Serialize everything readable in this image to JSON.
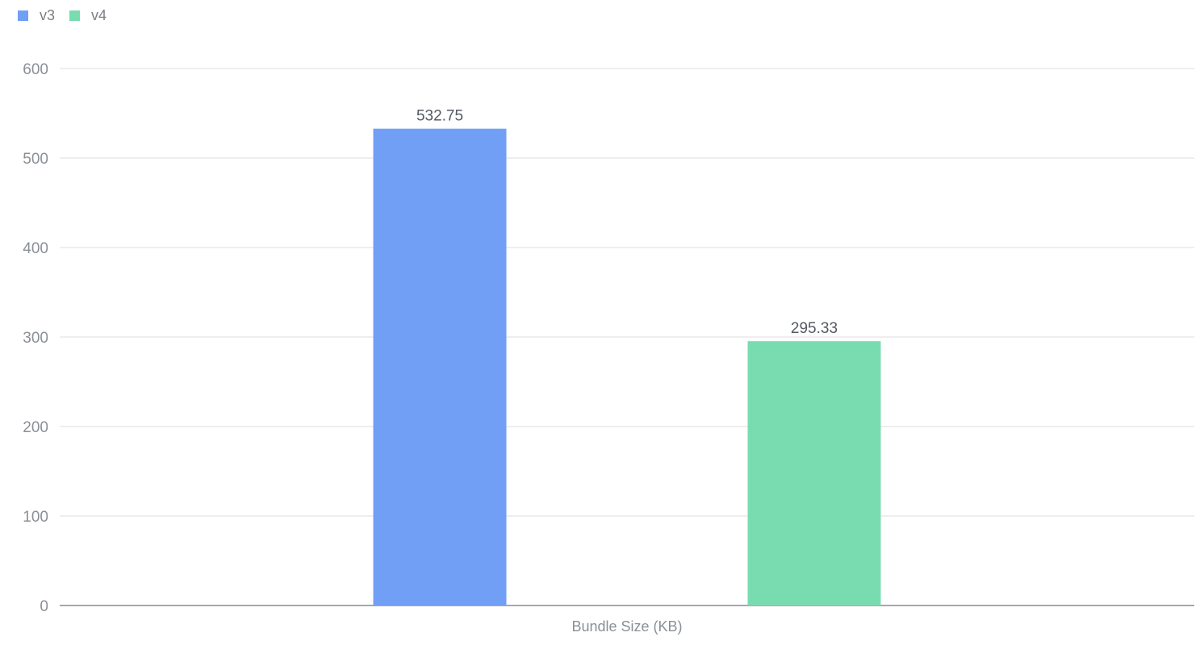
{
  "chart_data": {
    "type": "bar",
    "categories": [
      "Bundle Size (KB)"
    ],
    "series": [
      {
        "name": "v3",
        "values": [
          532.75
        ],
        "color": "#729ff6"
      },
      {
        "name": "v4",
        "values": [
          295.33
        ],
        "color": "#79dcb1"
      }
    ],
    "data_labels": [
      "532.75",
      "295.33"
    ],
    "yticks": [
      "0",
      "100",
      "200",
      "300",
      "400",
      "500",
      "600"
    ],
    "xlabel": "Bundle Size (KB)",
    "ylim": [
      0,
      600
    ],
    "grid": true,
    "legend_position": "top-left"
  }
}
